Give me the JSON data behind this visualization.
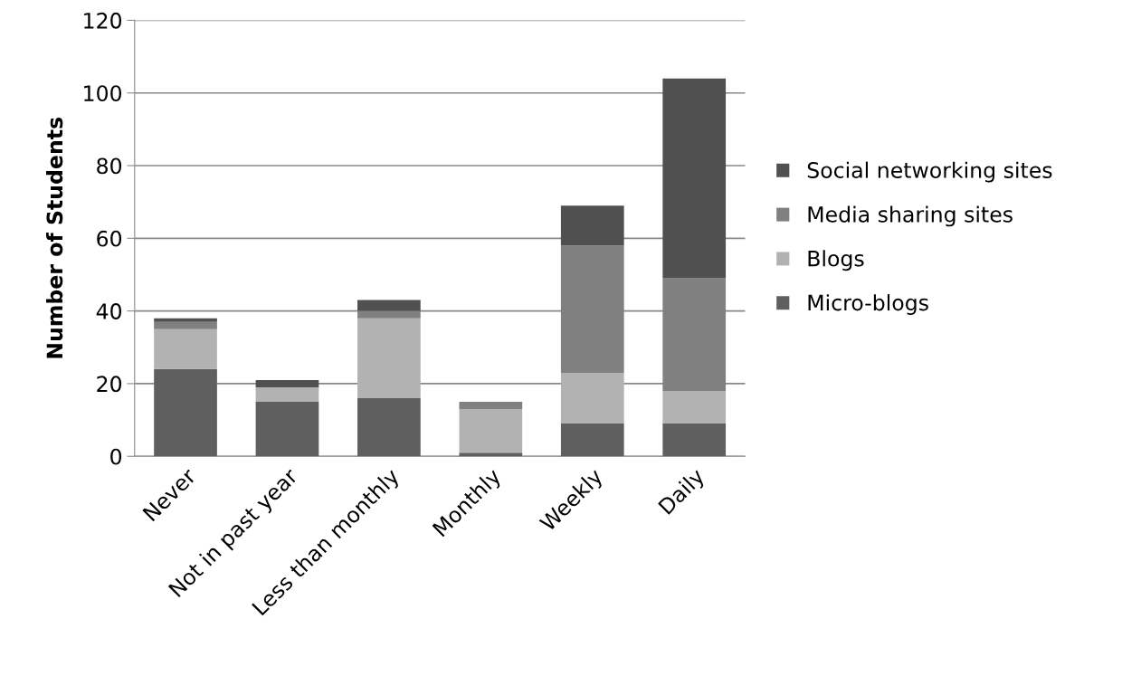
{
  "chart_data": {
    "type": "bar",
    "stacked": true,
    "ylabel": "Number of Students",
    "categories": [
      "Never",
      "Not in past year",
      "Less than monthly",
      "Monthly",
      "Weekly",
      "Daily"
    ],
    "series": [
      {
        "name": "Micro-blogs",
        "color": "#5f5f5f",
        "values": [
          24,
          15,
          16,
          1,
          9,
          9
        ]
      },
      {
        "name": "Blogs",
        "color": "#b2b2b2",
        "values": [
          11,
          4,
          22,
          12,
          14,
          9
        ]
      },
      {
        "name": "Media sharing sites",
        "color": "#808080",
        "values": [
          2,
          0,
          2,
          2,
          35,
          31
        ]
      },
      {
        "name": "Social networking sites",
        "color": "#505050",
        "values": [
          1,
          2,
          3,
          0,
          11,
          55
        ]
      }
    ],
    "ylim": [
      0,
      120
    ],
    "yticks": [
      0,
      20,
      40,
      60,
      80,
      100,
      120
    ],
    "grid": "y",
    "legend": "right"
  }
}
